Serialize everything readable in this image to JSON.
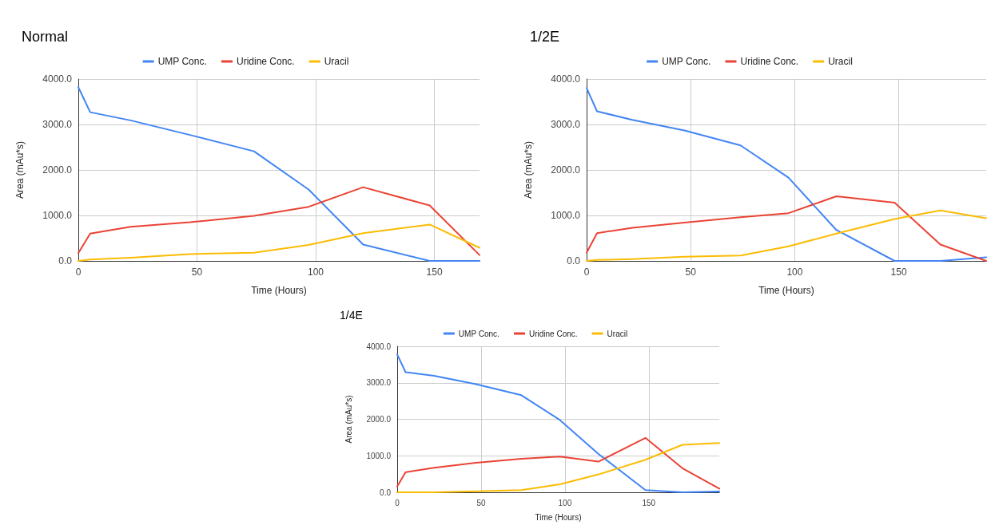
{
  "chart_data": [
    {
      "type": "line",
      "title": "Normal",
      "xlabel": "Time (Hours)",
      "ylabel": "Area (mAu*s)",
      "x": [
        0,
        5,
        22,
        47,
        74,
        97,
        120,
        148,
        169
      ],
      "series": [
        {
          "name": "UMP Conc.",
          "color": "#4285f4",
          "values": [
            3820,
            3270,
            3090,
            2770,
            2410,
            1570,
            360,
            0,
            0
          ]
        },
        {
          "name": "Uridine Conc.",
          "color": "#ea4335",
          "values": [
            170,
            600,
            750,
            850,
            990,
            1190,
            1620,
            1220,
            130
          ]
        },
        {
          "name": "Uracil",
          "color": "#fbbc04",
          "values": [
            0,
            30,
            70,
            150,
            180,
            350,
            610,
            800,
            290
          ]
        }
      ],
      "xlim": [
        0,
        169
      ],
      "xticks": [
        0,
        50,
        100,
        150
      ],
      "ylim": [
        0,
        4000
      ],
      "yticks": [
        {
          "value": 0,
          "label": "0.0"
        },
        {
          "value": 1000,
          "label": "1000.0"
        },
        {
          "value": 2000,
          "label": "2000.0"
        },
        {
          "value": 3000,
          "label": "3000.0"
        },
        {
          "value": 4000,
          "label": "4000.0"
        }
      ],
      "grid": true,
      "legend": "top",
      "marker": "none",
      "line_style": "solid"
    },
    {
      "type": "line",
      "title": "1/2E",
      "xlabel": "Time (Hours)",
      "ylabel": "Area (mAu*s)",
      "x": [
        0,
        5,
        22,
        47,
        74,
        97,
        120,
        148,
        170,
        192
      ],
      "series": [
        {
          "name": "UMP Conc.",
          "color": "#4285f4",
          "values": [
            3800,
            3290,
            3100,
            2870,
            2540,
            1830,
            680,
            0,
            0,
            80
          ]
        },
        {
          "name": "Uridine Conc.",
          "color": "#ea4335",
          "values": [
            180,
            610,
            730,
            840,
            960,
            1050,
            1420,
            1280,
            360,
            0
          ]
        },
        {
          "name": "Uracil",
          "color": "#fbbc04",
          "values": [
            0,
            20,
            40,
            90,
            120,
            320,
            600,
            920,
            1110,
            940
          ]
        }
      ],
      "xlim": [
        0,
        192
      ],
      "xticks": [
        0,
        50,
        100,
        150
      ],
      "ylim": [
        0,
        4000
      ],
      "yticks": [
        {
          "value": 0,
          "label": "0.0"
        },
        {
          "value": 1000,
          "label": "1000.0"
        },
        {
          "value": 2000,
          "label": "2000.0"
        },
        {
          "value": 3000,
          "label": "3000.0"
        },
        {
          "value": 4000,
          "label": "4000.0"
        }
      ],
      "grid": true,
      "legend": "top",
      "marker": "none",
      "line_style": "solid"
    },
    {
      "type": "line",
      "title": "1/4E",
      "xlabel": "Time (Hours)",
      "ylabel": "Area (mAu*s)",
      "x": [
        0,
        5,
        22,
        47,
        74,
        97,
        120,
        148,
        170,
        192
      ],
      "series": [
        {
          "name": "UMP Conc.",
          "color": "#4285f4",
          "values": [
            3780,
            3290,
            3190,
            2960,
            2660,
            1980,
            1050,
            60,
            0,
            20
          ]
        },
        {
          "name": "Uridine Conc.",
          "color": "#ea4335",
          "values": [
            160,
            550,
            670,
            810,
            920,
            980,
            840,
            1490,
            660,
            100
          ]
        },
        {
          "name": "Uracil",
          "color": "#fbbc04",
          "values": [
            0,
            0,
            0,
            30,
            60,
            220,
            490,
            890,
            1300,
            1350
          ]
        }
      ],
      "xlim": [
        0,
        192
      ],
      "xticks": [
        0,
        50,
        100,
        150
      ],
      "ylim": [
        0,
        4000
      ],
      "yticks": [
        {
          "value": 0,
          "label": "0.0"
        },
        {
          "value": 1000,
          "label": "1000.0"
        },
        {
          "value": 2000,
          "label": "2000.0"
        },
        {
          "value": 3000,
          "label": "3000.0"
        },
        {
          "value": 4000,
          "label": "4000.0"
        }
      ],
      "grid": true,
      "legend": "top",
      "marker": "none",
      "line_style": "solid"
    }
  ]
}
